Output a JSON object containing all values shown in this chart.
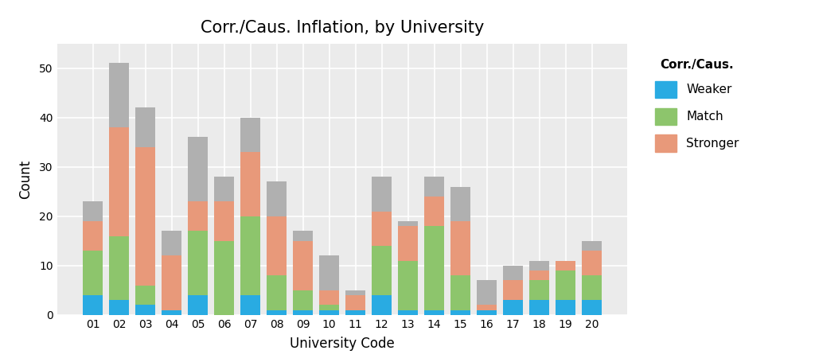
{
  "categories": [
    "01",
    "02",
    "03",
    "04",
    "05",
    "06",
    "07",
    "08",
    "09",
    "10",
    "11",
    "12",
    "13",
    "14",
    "15",
    "16",
    "17",
    "18",
    "19",
    "20"
  ],
  "weaker": [
    4,
    3,
    2,
    1,
    4,
    0,
    4,
    1,
    1,
    1,
    1,
    4,
    1,
    1,
    1,
    1,
    3,
    3,
    3,
    3
  ],
  "match": [
    9,
    13,
    4,
    0,
    13,
    15,
    16,
    7,
    4,
    1,
    0,
    10,
    10,
    17,
    7,
    0,
    0,
    4,
    6,
    5
  ],
  "stronger": [
    6,
    22,
    28,
    11,
    6,
    8,
    13,
    12,
    10,
    3,
    3,
    7,
    7,
    6,
    11,
    1,
    4,
    2,
    2,
    5
  ],
  "na": [
    4,
    13,
    8,
    5,
    13,
    5,
    7,
    7,
    2,
    7,
    1,
    7,
    1,
    4,
    7,
    5,
    3,
    2,
    0,
    2
  ],
  "color_weaker": "#29ABE2",
  "color_match": "#8DC56C",
  "color_stronger": "#E8997A",
  "color_na": "#B0B0B0",
  "title": "Corr./Caus. Inflation, by University",
  "xlabel": "University Code",
  "ylabel": "Count",
  "legend_title": "Corr./Caus.",
  "ylim": [
    0,
    55
  ],
  "yticks": [
    0,
    10,
    20,
    30,
    40,
    50
  ],
  "bg_color": "#EBEBEB",
  "grid_color": "#FFFFFF",
  "bar_width": 0.75
}
